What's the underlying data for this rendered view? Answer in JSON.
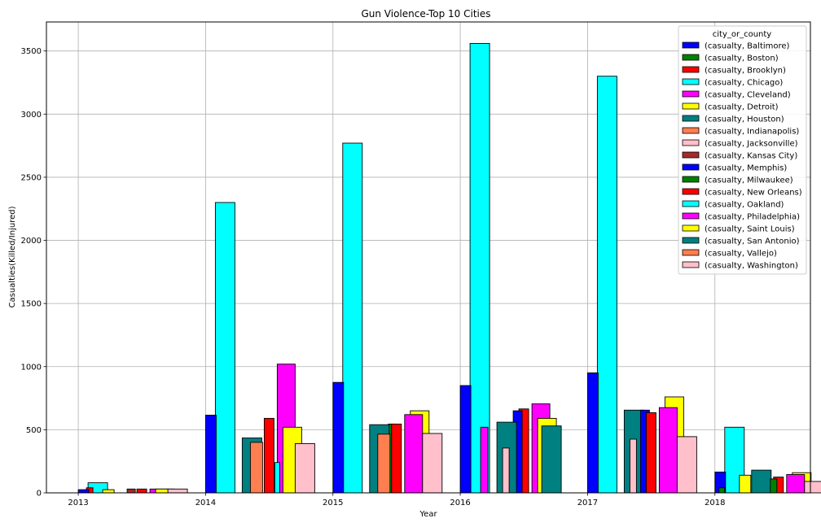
{
  "chart_data": {
    "type": "bar",
    "title": "Gun Violence-Top 10 Cities",
    "xlabel": "Year",
    "ylabel": "Casualties(Killed/Injured)",
    "ylim": [
      0,
      3730
    ],
    "yticks": [
      0,
      500,
      1000,
      1500,
      2000,
      2500,
      3000,
      3500
    ],
    "grid": true,
    "legend_title": "city_or_county",
    "legend_position": "top-right",
    "x": [
      2013,
      2014,
      2015,
      2016,
      2017,
      2018
    ],
    "series": [
      {
        "name": "(casualty, Baltimore)",
        "color": "#0000ff",
        "values": [
          25,
          615,
          875,
          850,
          950,
          165
        ]
      },
      {
        "name": "(casualty, Boston)",
        "color": "#008000",
        "values": [
          null,
          null,
          null,
          null,
          null,
          40
        ]
      },
      {
        "name": "(casualty, Brooklyn)",
        "color": "#ff0000",
        "values": [
          40,
          null,
          null,
          null,
          null,
          null
        ]
      },
      {
        "name": "(casualty, Chicago)",
        "color": "#00ffff",
        "values": [
          80,
          2300,
          2770,
          3560,
          3300,
          520
        ]
      },
      {
        "name": "(casualty, Cleveland)",
        "color": "#ff00ff",
        "values": [
          null,
          null,
          null,
          520,
          null,
          null
        ]
      },
      {
        "name": "(casualty, Detroit)",
        "color": "#ffff00",
        "values": [
          25,
          null,
          null,
          null,
          null,
          140
        ]
      },
      {
        "name": "(casualty, Houston)",
        "color": "#008080",
        "values": [
          null,
          435,
          540,
          560,
          655,
          180
        ]
      },
      {
        "name": "(casualty, Indianapolis)",
        "color": "#ff7f50",
        "values": [
          null,
          400,
          465,
          null,
          null,
          null
        ]
      },
      {
        "name": "(casualty, Jacksonville)",
        "color": "#ffc0cb",
        "values": [
          null,
          null,
          null,
          355,
          425,
          null
        ]
      },
      {
        "name": "(casualty, Kansas City)",
        "color": "#a52a2a",
        "values": [
          30,
          null,
          null,
          null,
          null,
          null
        ]
      },
      {
        "name": "(casualty, Memphis)",
        "color": "#0000ff",
        "values": [
          null,
          null,
          null,
          650,
          655,
          null
        ]
      },
      {
        "name": "(casualty, Milwaukee)",
        "color": "#008000",
        "values": [
          null,
          null,
          545,
          null,
          null,
          110
        ]
      },
      {
        "name": "(casualty, New Orleans)",
        "color": "#ff0000",
        "values": [
          30,
          590,
          545,
          665,
          635,
          125
        ]
      },
      {
        "name": "(casualty, Oakland)",
        "color": "#00ffff",
        "values": [
          null,
          240,
          null,
          null,
          null,
          null
        ]
      },
      {
        "name": "(casualty, Philadelphia)",
        "color": "#ff00ff",
        "values": [
          30,
          1020,
          620,
          705,
          675,
          145
        ]
      },
      {
        "name": "(casualty, Saint Louis)",
        "color": "#ffff00",
        "values": [
          30,
          520,
          650,
          590,
          760,
          160
        ]
      },
      {
        "name": "(casualty, San Antonio)",
        "color": "#008080",
        "values": [
          null,
          null,
          null,
          530,
          null,
          null
        ]
      },
      {
        "name": "(casualty, Vallejo)",
        "color": "#ff7f50",
        "values": [
          null,
          null,
          null,
          null,
          null,
          null
        ]
      },
      {
        "name": "(casualty, Washington)",
        "color": "#ffc0cb",
        "values": [
          30,
          390,
          470,
          null,
          445,
          90
        ]
      }
    ]
  }
}
